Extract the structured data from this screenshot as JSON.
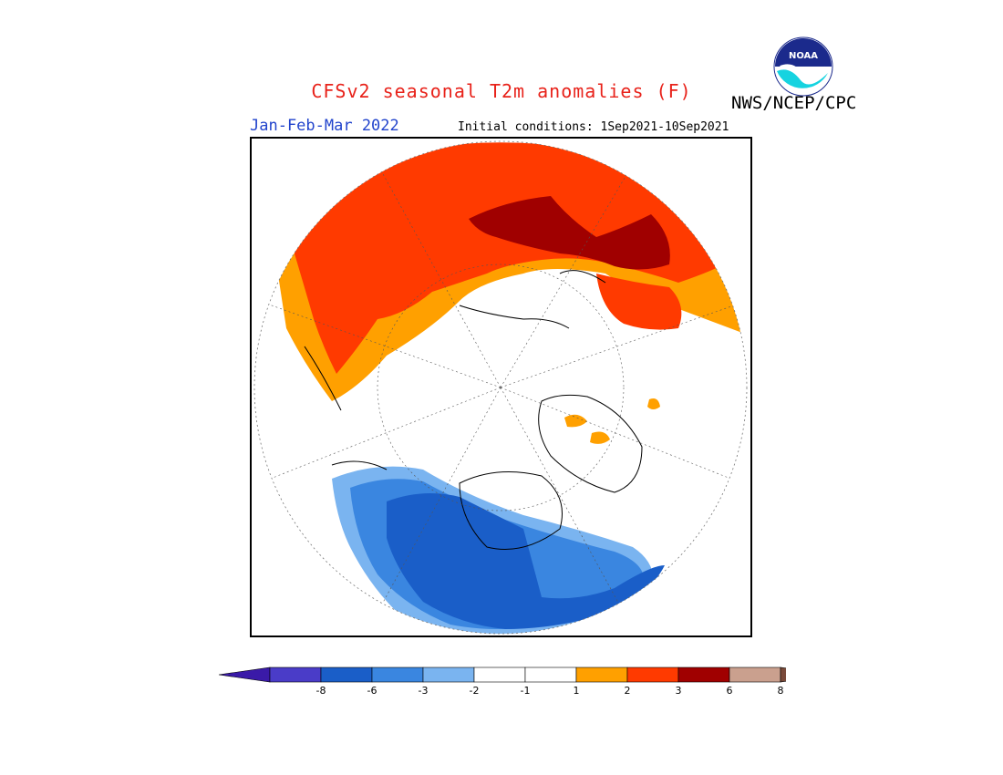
{
  "header": {
    "title": "CFSv2 seasonal T2m anomalies (F)",
    "agency": "NWS/NCEP/CPC",
    "logo_text": "NOAA",
    "season": "Jan-Feb-Mar 2022",
    "initial_conditions": "Initial conditions: 1Sep2021-10Sep2021"
  },
  "colors": {
    "title": "#e8221a",
    "season": "#2244cc",
    "below_8": "#3a1aa8",
    "m8_m6": "#4a3cc8",
    "m6_m3": "#1a5ec8",
    "m3_m2": "#3a86e0",
    "m2_m1": "#7ab4f0",
    "neutral": "#ffffff",
    "p1_p2": "#ffa000",
    "p2_p3": "#ff3a00",
    "p3_p6": "#a00000",
    "p6_p8": "#caa08e",
    "above_8": "#7a4a3a"
  },
  "legend": {
    "ticks": [
      "-8",
      "-6",
      "-3",
      "-2",
      "-1",
      "1",
      "2",
      "3",
      "6",
      "8"
    ],
    "bins": [
      "m8_m6",
      "m6_m3",
      "m3_m2",
      "m2_m1",
      "neutral",
      "neutral",
      "p1_p2",
      "p2_p3",
      "p3_p6",
      "p6_p8"
    ]
  }
}
